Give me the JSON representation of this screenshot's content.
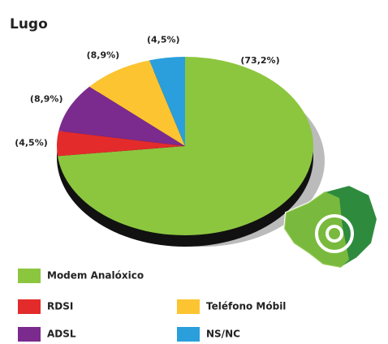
{
  "chart_data": {
    "type": "pie",
    "title": "Lugo",
    "categories": [
      "Modem Analóxico",
      "RDSI",
      "ADSL",
      "Teléfono Móbil",
      "NS/NC"
    ],
    "values": [
      73.2,
      4.5,
      8.9,
      8.9,
      4.5
    ],
    "value_labels": [
      "(73,2%)",
      "(4,5%)",
      "(8,9%)",
      "(8,9%)",
      "(4,5%)"
    ],
    "colors": [
      "#8cc63f",
      "#e32b2b",
      "#7b2a8e",
      "#fcc431",
      "#2a9fdc"
    ]
  }
}
